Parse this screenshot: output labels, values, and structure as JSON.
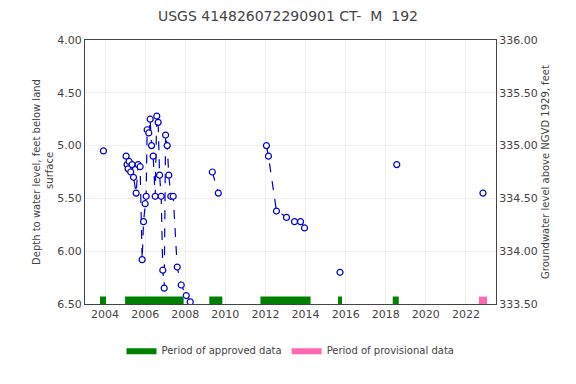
{
  "chart_data": {
    "type": "line",
    "title": "USGS 414826072290901 CT-  M  192",
    "ylabel": "Depth to water level, feet below land\n surface",
    "y2label": "Groundwater level above NGVD 1929, feet",
    "x": [
      2003.92,
      null,
      2005.05,
      2005.1,
      2005.15,
      2005.2,
      2005.28,
      2005.35,
      2005.42,
      2005.55,
      2005.65,
      2005.75,
      2005.85,
      2005.92,
      2006.0,
      2006.05,
      2006.1,
      2006.18,
      2006.25,
      2006.32,
      2006.4,
      2006.5,
      2006.58,
      2006.65,
      2006.72,
      2006.8,
      2006.88,
      2006.95,
      2007.02,
      2007.1,
      2007.18,
      2007.28,
      2007.4,
      2007.6,
      2007.8,
      2008.05,
      2008.25,
      null,
      2009.35,
      2009.65,
      null,
      2012.05,
      2012.15,
      2012.55,
      2013.05,
      2013.45,
      2013.75,
      2013.95,
      null,
      2015.72,
      null,
      2018.55,
      null,
      2022.85
    ],
    "series": [
      {
        "color": "#0000cc",
        "marker": "circle-open",
        "line_style": "dash",
        "values": [
          5.05,
          null,
          5.1,
          5.18,
          5.22,
          5.15,
          5.25,
          5.18,
          5.3,
          5.45,
          5.18,
          5.2,
          6.08,
          5.72,
          5.55,
          5.48,
          4.85,
          4.88,
          4.75,
          5.0,
          5.1,
          5.48,
          4.72,
          4.78,
          5.28,
          5.48,
          6.18,
          6.35,
          4.9,
          5.0,
          5.28,
          5.48,
          5.48,
          6.15,
          6.32,
          6.42,
          6.48,
          null,
          5.25,
          5.45,
          null,
          5.0,
          5.1,
          5.62,
          5.68,
          5.72,
          5.72,
          5.78,
          null,
          6.2,
          null,
          5.18,
          null,
          5.45
        ]
      }
    ],
    "periods": [
      {
        "name": "Period of approved data",
        "color": "#008000",
        "y_range": [
          6.43,
          6.5
        ],
        "x_ranges": [
          [
            2003.75,
            2004.05
          ],
          [
            2005.0,
            2007.92
          ],
          [
            2009.2,
            2009.85
          ],
          [
            2011.75,
            2014.25
          ],
          [
            2015.62,
            2015.82
          ],
          [
            2018.35,
            2018.65
          ]
        ]
      },
      {
        "name": "Period of provisional data",
        "color": "#ff69b4",
        "y_range": [
          6.43,
          6.5
        ],
        "x_ranges": [
          [
            2022.65,
            2023.05
          ]
        ]
      }
    ],
    "xlim": [
      2003.0,
      2023.5
    ],
    "xticks": [
      2004,
      2006,
      2008,
      2010,
      2012,
      2014,
      2016,
      2018,
      2020,
      2022
    ],
    "ylim": [
      6.5,
      4.0
    ],
    "yticks": [
      {
        "value": 4.0,
        "label": "4.00"
      },
      {
        "value": 4.5,
        "label": "4.50"
      },
      {
        "value": 5.0,
        "label": "5.00"
      },
      {
        "value": 5.5,
        "label": "5.50"
      },
      {
        "value": 6.0,
        "label": "6.00"
      },
      {
        "value": 6.5,
        "label": "6.50"
      }
    ],
    "y2lim": [
      333.5,
      336.0
    ],
    "y2ticks": [
      {
        "value": 333.5,
        "label": "333.50"
      },
      {
        "value": 334.0,
        "label": "334.00"
      },
      {
        "value": 334.5,
        "label": "334.50"
      },
      {
        "value": 335.0,
        "label": "335.00"
      },
      {
        "value": 335.5,
        "label": "335.50"
      },
      {
        "value": 336.0,
        "label": "336.00"
      }
    ],
    "grid": true,
    "legend": "bottom"
  }
}
